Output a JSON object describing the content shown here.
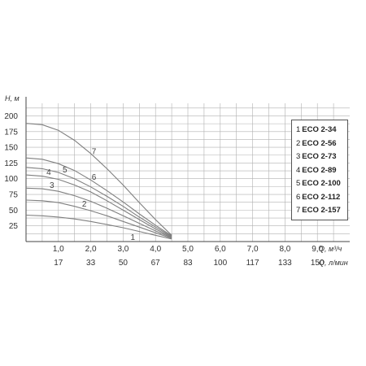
{
  "chart_data": {
    "type": "line",
    "y_title": "H, м",
    "x_title_primary": "Q, м³/ч",
    "x_title_secondary": "Q, л/мин",
    "yticks": [
      "25",
      "50",
      "75",
      "100",
      "125",
      "150",
      "175",
      "200"
    ],
    "xticks_primary": [
      "1,0",
      "2,0",
      "3,0",
      "4,0",
      "5,0",
      "6,0",
      "7,0",
      "8,0",
      "9,0"
    ],
    "xticks_secondary": [
      "17",
      "33",
      "50",
      "67",
      "83",
      "100",
      "117",
      "133",
      "150"
    ],
    "xlim": [
      0,
      10
    ],
    "ylim": [
      0,
      220
    ],
    "grid": true,
    "legend_position": "right",
    "series": [
      {
        "name": "1",
        "label": "ECO 2-34",
        "x": [
          0,
          0.5,
          1.0,
          1.5,
          2.0,
          2.5,
          3.0,
          3.5,
          4.0,
          4.5
        ],
        "y": [
          42,
          41,
          39,
          36,
          32,
          27,
          22,
          16,
          10,
          4
        ]
      },
      {
        "name": "2",
        "label": "ECO 2-56",
        "x": [
          0,
          0.5,
          1.0,
          1.5,
          2.0,
          2.5,
          3.0,
          3.5,
          4.0,
          4.5
        ],
        "y": [
          66,
          65,
          62,
          56,
          49,
          41,
          32,
          23,
          14,
          5
        ]
      },
      {
        "name": "3",
        "label": "ECO 2-73",
        "x": [
          0,
          0.5,
          1.0,
          1.5,
          2.0,
          2.5,
          3.0,
          3.5,
          4.0,
          4.5
        ],
        "y": [
          85,
          84,
          80,
          73,
          64,
          53,
          41,
          29,
          17,
          6
        ]
      },
      {
        "name": "4",
        "label": "ECO 2-89",
        "x": [
          0,
          0.5,
          1.0,
          1.5,
          2.0,
          2.5,
          3.0,
          3.5,
          4.0,
          4.5
        ],
        "y": [
          106,
          104,
          99,
          90,
          79,
          65,
          50,
          35,
          20,
          7
        ]
      },
      {
        "name": "5",
        "label": "ECO 2-100",
        "x": [
          0,
          0.5,
          1.0,
          1.5,
          2.0,
          2.5,
          3.0,
          3.5,
          4.0,
          4.5
        ],
        "y": [
          118,
          116,
          110,
          100,
          87,
          72,
          56,
          39,
          23,
          8
        ]
      },
      {
        "name": "6",
        "label": "ECO 2-112",
        "x": [
          0,
          0.5,
          1.0,
          1.5,
          2.0,
          2.5,
          3.0,
          3.5,
          4.0,
          4.5
        ],
        "y": [
          133,
          131,
          124,
          113,
          98,
          81,
          63,
          44,
          26,
          9
        ]
      },
      {
        "name": "7",
        "label": "ECO 2-157",
        "x": [
          0,
          0.5,
          1.0,
          1.5,
          2.0,
          2.5,
          3.0,
          3.5,
          4.0,
          4.5
        ],
        "y": [
          188,
          186,
          177,
          161,
          140,
          116,
          90,
          62,
          35,
          10
        ]
      }
    ],
    "colors": {
      "grid": "#b0b0b0",
      "axis": "#444444",
      "curve": "#7f7f7f"
    }
  }
}
